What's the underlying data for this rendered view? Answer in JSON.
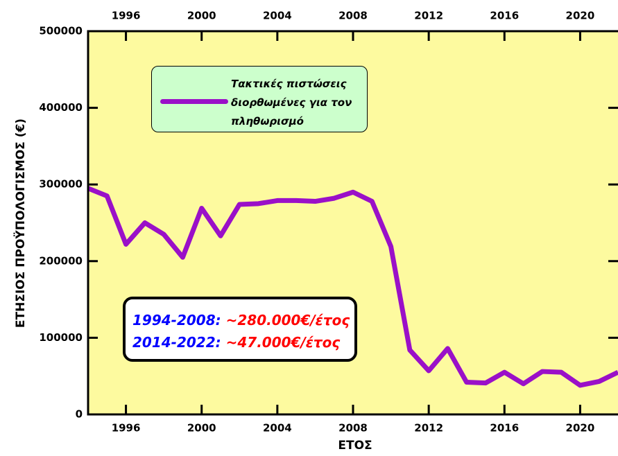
{
  "chart_data": {
    "type": "line",
    "x_label": "ΕΤΟΣ",
    "y_label": "ΕΤΗΣΙΟΣ ΠΡΟΫΠΟΛΟΓΙΣΜΟΣ (€)",
    "x": [
      1994,
      1995,
      1996,
      1997,
      1998,
      1999,
      2000,
      2001,
      2002,
      2003,
      2004,
      2005,
      2006,
      2007,
      2008,
      2009,
      2010,
      2011,
      2012,
      2013,
      2014,
      2015,
      2016,
      2017,
      2018,
      2019,
      2020,
      2021,
      2022
    ],
    "series": [
      {
        "name": "Τακτικές πιστώσεις διορθωμένες για τον πληθωρισμό",
        "color": "#9a10c8",
        "values": [
          295000,
          285000,
          222000,
          250000,
          235000,
          205000,
          269000,
          233000,
          274000,
          275000,
          279000,
          279000,
          278000,
          282000,
          290000,
          278000,
          219000,
          84000,
          57000,
          86000,
          42000,
          41000,
          55000,
          40000,
          56000,
          55000,
          38000,
          43000,
          55000
        ]
      }
    ],
    "xlim": [
      1994,
      2022
    ],
    "xticks": [
      1996,
      2000,
      2004,
      2008,
      2012,
      2016,
      2020
    ],
    "ylim": [
      0,
      500000
    ],
    "yticks": [
      0,
      100000,
      200000,
      300000,
      400000,
      500000
    ],
    "background": "#fdfa9f",
    "annotations": [
      {
        "period": "1994-2008:",
        "amount": "~280.000€/έτος",
        "period_color": "#0000ff",
        "amount_color": "#ff0000"
      },
      {
        "period": "2014-2022:",
        "amount": "~47.000€/έτος",
        "period_color": "#0000ff",
        "amount_color": "#ff0000"
      }
    ]
  }
}
